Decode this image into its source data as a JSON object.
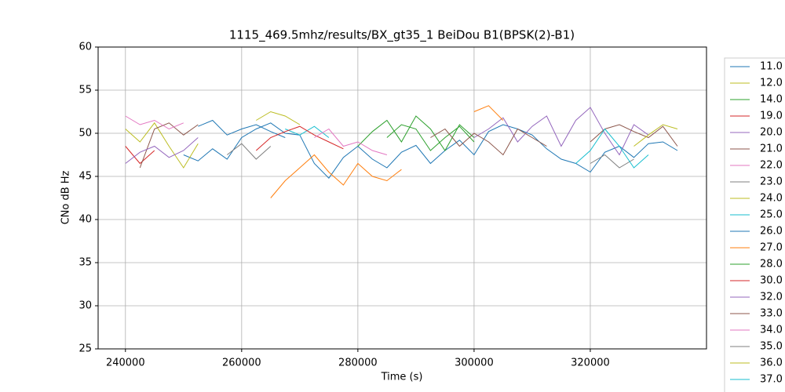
{
  "chart_data": {
    "type": "line",
    "title": "1115_469.5mhz/results/BX_gt35_1 BeiDou B1(BPSK(2)-B1)",
    "xlabel": "Time (s)",
    "ylabel": "CNo dB Hz",
    "xlim": [
      235300,
      340000
    ],
    "ylim": [
      25,
      60
    ],
    "xticks": [
      240000,
      260000,
      280000,
      300000,
      320000
    ],
    "yticks": [
      25,
      30,
      35,
      40,
      45,
      50,
      55,
      60
    ],
    "grid": true,
    "series": [
      {
        "name": "11.0",
        "color": "#1f77b4",
        "x": [
          250000,
          252500,
          255000,
          257500,
          260000,
          262500,
          265000,
          267500,
          270000,
          272500,
          275000,
          277500,
          280000,
          282500,
          285000,
          287500,
          290000,
          292500,
          295000,
          297500,
          300000,
          302500,
          305000,
          307500,
          310000,
          312500,
          315000,
          317500,
          320000,
          322500,
          325000,
          327500,
          330000,
          332500,
          335000
        ],
        "values": [
          47.5,
          46.8,
          48.2,
          47.0,
          49.5,
          50.5,
          51.2,
          50.0,
          49.8,
          46.5,
          44.8,
          47.2,
          48.5,
          47.0,
          46.0,
          47.8,
          48.6,
          46.5,
          48.0,
          49.2,
          47.5,
          50.2,
          51.0,
          50.5,
          49.8,
          48.2,
          47.0,
          46.5,
          45.5,
          47.8,
          48.5,
          47.2,
          48.8,
          49.0,
          48.0
        ]
      },
      {
        "name": "12.0",
        "color": "#bcbd22",
        "x": [
          240000,
          242500,
          245000,
          247500,
          250000,
          252500
        ],
        "values": [
          50.5,
          49.0,
          51.2,
          48.5,
          46.0,
          48.8
        ]
      },
      {
        "name": "14.0",
        "color": "#2ca02c",
        "x": [
          280000,
          282500,
          285000,
          287500,
          290000,
          292500,
          295000,
          297500,
          300000
        ],
        "values": [
          48.5,
          50.2,
          51.5,
          49.0,
          52.0,
          50.5,
          48.0,
          51.0,
          49.5
        ]
      },
      {
        "name": "19.0",
        "color": "#d62728",
        "x": [
          240000,
          242500,
          245000
        ],
        "values": [
          48.5,
          46.5,
          48.0
        ]
      },
      {
        "name": "20.0",
        "color": "#9467bd",
        "x": [
          300000,
          302500,
          305000,
          307500,
          310000,
          312500,
          315000,
          317500,
          320000,
          322500,
          325000,
          327500,
          330000
        ],
        "values": [
          49.5,
          50.5,
          51.8,
          49.0,
          50.8,
          52.0,
          48.5,
          51.5,
          53.0,
          50.0,
          47.5,
          51.0,
          49.8
        ]
      },
      {
        "name": "21.0",
        "color": "#8c564b",
        "x": [
          242500,
          245000,
          247500,
          250000,
          252500
        ],
        "values": [
          46.0,
          50.5,
          51.2,
          49.8,
          51.0
        ]
      },
      {
        "name": "22.0",
        "color": "#e377c2",
        "x": [
          240000,
          242500,
          245000,
          247500,
          250000
        ],
        "values": [
          52.0,
          51.0,
          51.5,
          50.5,
          51.2
        ]
      },
      {
        "name": "23.0",
        "color": "#7f7f7f",
        "x": [
          257500,
          260000,
          262500,
          265000
        ],
        "values": [
          47.5,
          48.8,
          47.0,
          48.5
        ]
      },
      {
        "name": "24.0",
        "color": "#bcbd22",
        "x": [
          262500,
          265000,
          267500,
          270000
        ],
        "values": [
          51.5,
          52.5,
          52.0,
          51.0
        ]
      },
      {
        "name": "25.0",
        "color": "#17becf",
        "x": [
          267500,
          270000,
          272500,
          275000
        ],
        "values": [
          50.5,
          49.8,
          50.8,
          49.5
        ]
      },
      {
        "name": "26.0",
        "color": "#1f77b4",
        "x": [
          252500,
          255000,
          257500,
          260000,
          262500,
          265000,
          267500
        ],
        "values": [
          50.8,
          51.5,
          49.8,
          50.5,
          51.0,
          50.2,
          49.5
        ]
      },
      {
        "name": "27.0",
        "color": "#ff7f0e",
        "x": [
          265000,
          267500,
          270000,
          272500,
          275000,
          277500,
          280000,
          282500,
          285000,
          287500,
          297500,
          300000,
          302500,
          305000
        ],
        "values": [
          42.5,
          44.5,
          46.0,
          47.5,
          45.5,
          44.0,
          46.5,
          45.0,
          44.5,
          45.8,
          null,
          52.5,
          53.2,
          51.5
        ]
      },
      {
        "name": "28.0",
        "color": "#2ca02c",
        "x": [
          285000,
          287500,
          290000,
          292500,
          295000,
          297500,
          300000
        ],
        "values": [
          49.5,
          51.0,
          50.5,
          48.0,
          49.5,
          50.8,
          49.0
        ]
      },
      {
        "name": "30.0",
        "color": "#d62728",
        "x": [
          262500,
          265000,
          267500,
          270000,
          272500,
          275000,
          277500
        ],
        "values": [
          48.0,
          49.5,
          50.2,
          50.8,
          49.8,
          49.0,
          48.2
        ]
      },
      {
        "name": "32.0",
        "color": "#9467bd",
        "x": [
          240000,
          242500,
          245000,
          247500,
          250000,
          252500
        ],
        "values": [
          46.5,
          47.8,
          48.5,
          47.2,
          48.0,
          49.5
        ]
      },
      {
        "name": "33.0",
        "color": "#8c564b",
        "x": [
          292500,
          295000,
          297500,
          300000,
          302500,
          305000,
          307500,
          310000,
          312500,
          315000,
          320000,
          322500,
          325000,
          327500,
          330000,
          332500,
          335000
        ],
        "values": [
          49.5,
          50.5,
          48.5,
          50.0,
          49.0,
          47.5,
          50.5,
          49.5,
          48.5,
          null,
          49.0,
          50.5,
          51.0,
          50.2,
          49.5,
          50.8,
          48.5
        ]
      },
      {
        "name": "34.0",
        "color": "#e377c2",
        "x": [
          272500,
          275000,
          277500,
          280000,
          282500,
          285000
        ],
        "values": [
          49.5,
          50.5,
          48.5,
          49.0,
          48.0,
          47.5
        ]
      },
      {
        "name": "35.0",
        "color": "#7f7f7f",
        "x": [
          320000,
          322500,
          325000,
          327500
        ],
        "values": [
          46.5,
          47.5,
          46.0,
          47.0
        ]
      },
      {
        "name": "36.0",
        "color": "#bcbd22",
        "x": [
          327500,
          330000,
          332500,
          335000
        ],
        "values": [
          48.5,
          49.8,
          51.0,
          50.5
        ]
      },
      {
        "name": "37.0",
        "color": "#17becf",
        "x": [
          317500,
          320000,
          322500,
          325000,
          327500,
          330000
        ],
        "values": [
          46.5,
          48.0,
          50.5,
          48.5,
          46.0,
          47.5
        ]
      }
    ]
  }
}
